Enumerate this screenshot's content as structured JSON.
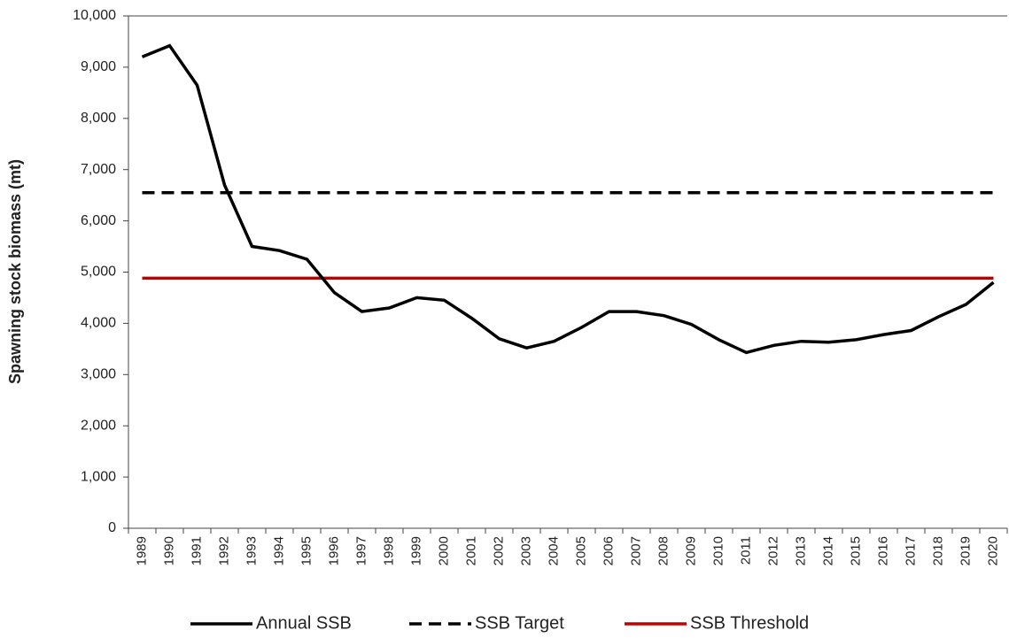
{
  "chart_data": {
    "type": "line",
    "y_label": "Spawning stock biomass (mt)",
    "categories": [
      "1989",
      "1990",
      "1991",
      "1992",
      "1993",
      "1994",
      "1995",
      "1996",
      "1997",
      "1998",
      "1999",
      "2000",
      "2001",
      "2002",
      "2003",
      "2004",
      "2005",
      "2006",
      "2007",
      "2008",
      "2009",
      "2010",
      "2011",
      "2012",
      "2013",
      "2014",
      "2015",
      "2016",
      "2017",
      "2018",
      "2019",
      "2020"
    ],
    "series": [
      {
        "name": "Annual SSB",
        "color": "#000000",
        "style": "solid",
        "values": [
          9200,
          9420,
          8650,
          6700,
          5500,
          5420,
          5250,
          4600,
          4230,
          4300,
          4500,
          4450,
          4100,
          3700,
          3520,
          3650,
          3920,
          4230,
          4230,
          4150,
          3980,
          3680,
          3430,
          3570,
          3650,
          3630,
          3680,
          3780,
          3860,
          4130,
          4370,
          4800
        ]
      },
      {
        "name": "SSB Target",
        "color": "#000000",
        "style": "dashed",
        "values": [
          6550,
          6550,
          6550,
          6550,
          6550,
          6550,
          6550,
          6550,
          6550,
          6550,
          6550,
          6550,
          6550,
          6550,
          6550,
          6550,
          6550,
          6550,
          6550,
          6550,
          6550,
          6550,
          6550,
          6550,
          6550,
          6550,
          6550,
          6550,
          6550,
          6550,
          6550,
          6550
        ]
      },
      {
        "name": "SSB Threshold",
        "color": "#c00000",
        "style": "solid",
        "values": [
          4880,
          4880,
          4880,
          4880,
          4880,
          4880,
          4880,
          4880,
          4880,
          4880,
          4880,
          4880,
          4880,
          4880,
          4880,
          4880,
          4880,
          4880,
          4880,
          4880,
          4880,
          4880,
          4880,
          4880,
          4880,
          4880,
          4880,
          4880,
          4880,
          4880,
          4880,
          4880
        ]
      }
    ],
    "ylim": [
      0,
      10000
    ],
    "yticks": [
      0,
      {
        "value": 1000,
        "label": "1,000"
      },
      {
        "value": 2000,
        "label": "2,000"
      },
      {
        "value": 3000,
        "label": "3,000"
      },
      {
        "value": 4000,
        "label": "4,000"
      },
      {
        "value": 5000,
        "label": "5,000"
      },
      {
        "value": 6000,
        "label": "6,000"
      },
      {
        "value": 7000,
        "label": "7,000"
      },
      {
        "value": 8000,
        "label": "8,000"
      },
      {
        "value": 9000,
        "label": "9,000"
      },
      {
        "value": 10000,
        "label": "10,000"
      }
    ],
    "grid": false,
    "legend": "bottom"
  }
}
